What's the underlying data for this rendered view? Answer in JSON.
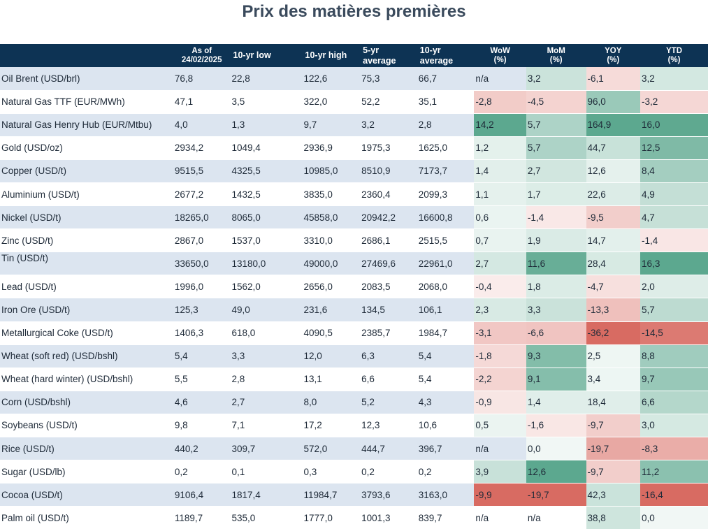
{
  "title": "Prix des matières premières",
  "headers": {
    "name": "",
    "asof": "As of",
    "asof_date": "24/02/2025",
    "low": "10-yr low",
    "high": "10-yr high",
    "avg5_a": "5-yr",
    "avg5_b": "average",
    "avg10_a": "10-yr",
    "avg10_b": "average",
    "wow_a": "WoW",
    "wow_b": "(%)",
    "mom_a": "MoM",
    "mom_b": "(%)",
    "yoy_a": "YOY",
    "yoy_b": "(%)",
    "ytd_a": "YTD",
    "ytd_b": "(%)"
  },
  "rows": [
    {
      "name": "Oil Brent (USD/brl)",
      "asof": "76,8",
      "low": "22,8",
      "high": "122,6",
      "avg5": "75,3",
      "avg10": "66,7",
      "wow": "n/a",
      "mom": "3,2",
      "yoy": "-6,1",
      "ytd": "3,2"
    },
    {
      "name": "Natural Gas TTF (EUR/MWh)",
      "asof": "47,1",
      "low": "3,5",
      "high": "322,0",
      "avg5": "52,2",
      "avg10": "35,1",
      "wow": "-2,8",
      "mom": "-4,5",
      "yoy": "96,0",
      "ytd": "-3,2"
    },
    {
      "name": "Natural Gas Henry Hub (EUR/Mtbu)",
      "asof": "4,0",
      "low": "1,3",
      "high": "9,7",
      "avg5": "3,2",
      "avg10": "2,8",
      "wow": "14,2",
      "mom": "5,7",
      "yoy": "164,9",
      "ytd": "16,0"
    },
    {
      "name": "Gold (USD/oz)",
      "asof": "2934,2",
      "low": "1049,4",
      "high": "2936,9",
      "avg5": "1975,3",
      "avg10": "1625,0",
      "wow": "1,2",
      "mom": "5,7",
      "yoy": "44,7",
      "ytd": "12,5"
    },
    {
      "name": "Copper (USD/t)",
      "asof": "9515,5",
      "low": "4325,5",
      "high": "10985,0",
      "avg5": "8510,9",
      "avg10": "7173,7",
      "wow": "1,4",
      "mom": "2,7",
      "yoy": "12,6",
      "ytd": "8,4"
    },
    {
      "name": "Aluminium (USD/t)",
      "asof": "2677,2",
      "low": "1432,5",
      "high": "3835,0",
      "avg5": "2360,4",
      "avg10": "2099,3",
      "wow": "1,1",
      "mom": "1,7",
      "yoy": "22,6",
      "ytd": "4,9"
    },
    {
      "name": "Nickel (USD/t)",
      "asof": "18265,0",
      "low": "8065,0",
      "high": "45858,0",
      "avg5": "20942,2",
      "avg10": "16600,8",
      "wow": "0,6",
      "mom": "-1,4",
      "yoy": "-9,5",
      "ytd": "4,7"
    },
    {
      "name": "Zinc (USD/t)",
      "asof": "2867,0",
      "low": "1537,0",
      "high": "3310,0",
      "avg5": "2686,1",
      "avg10": "2515,5",
      "wow": "0,7",
      "mom": "1,9",
      "yoy": "14,7",
      "ytd": "-1,4"
    },
    {
      "name": "Tin (USD/t)",
      "asof": "33650,0",
      "low": "13180,0",
      "high": "49000,0",
      "avg5": "27469,6",
      "avg10": "22961,0",
      "wow": "2,7",
      "mom": "11,6",
      "yoy": "28,4",
      "ytd": "16,3"
    },
    {
      "name": "Lead (USD/t)",
      "asof": "1996,0",
      "low": "1562,0",
      "high": "2656,0",
      "avg5": "2083,5",
      "avg10": "2068,0",
      "wow": "-0,4",
      "mom": "1,8",
      "yoy": "-4,7",
      "ytd": "2,0"
    },
    {
      "name": "Iron Ore (USD/t)",
      "asof": "125,3",
      "low": "49,0",
      "high": "231,6",
      "avg5": "134,5",
      "avg10": "106,1",
      "wow": "2,3",
      "mom": "3,3",
      "yoy": "-13,3",
      "ytd": "5,7"
    },
    {
      "name": "Metallurgical Coke (USD/t)",
      "asof": "1406,3",
      "low": "618,0",
      "high": "4090,5",
      "avg5": "2385,7",
      "avg10": "1984,7",
      "wow": "-3,1",
      "mom": "-6,6",
      "yoy": "-36,2",
      "ytd": "-14,5"
    },
    {
      "name": "Wheat (soft red) (USD/bshl)",
      "asof": "5,4",
      "low": "3,3",
      "high": "12,0",
      "avg5": "6,3",
      "avg10": "5,4",
      "wow": "-1,8",
      "mom": "9,3",
      "yoy": "2,5",
      "ytd": "8,8"
    },
    {
      "name": "Wheat (hard winter) (USD/bshl)",
      "asof": "5,5",
      "low": "2,8",
      "high": "13,1",
      "avg5": "6,6",
      "avg10": "5,4",
      "wow": "-2,2",
      "mom": "9,1",
      "yoy": "3,4",
      "ytd": "9,7"
    },
    {
      "name": "Corn (USD/bshl)",
      "asof": "4,6",
      "low": "2,7",
      "high": "8,0",
      "avg5": "5,2",
      "avg10": "4,3",
      "wow": "-0,9",
      "mom": "1,4",
      "yoy": "18,4",
      "ytd": "6,6"
    },
    {
      "name": "Soybeans (USD/t)",
      "asof": "9,8",
      "low": "7,1",
      "high": "17,2",
      "avg5": "12,3",
      "avg10": "10,6",
      "wow": "0,5",
      "mom": "-1,6",
      "yoy": "-9,7",
      "ytd": "3,0"
    },
    {
      "name": "Rice (USD/t)",
      "asof": "440,2",
      "low": "309,7",
      "high": "572,0",
      "avg5": "444,7",
      "avg10": "396,7",
      "wow": "n/a",
      "mom": "0,0",
      "yoy": "-19,7",
      "ytd": "-8,3"
    },
    {
      "name": "Sugar (USD/lb)",
      "asof": "0,2",
      "low": "0,1",
      "high": "0,3",
      "avg5": "0,2",
      "avg10": "0,2",
      "wow": "3,9",
      "mom": "12,6",
      "yoy": "-9,7",
      "ytd": "11,2"
    },
    {
      "name": "Cocoa (USD/t)",
      "asof": "9106,4",
      "low": "1817,4",
      "high": "11984,7",
      "avg5": "3793,6",
      "avg10": "3163,0",
      "wow": "-9,9",
      "mom": "-19,7",
      "yoy": "42,3",
      "ytd": "-16,4"
    },
    {
      "name": "Palm oil (USD/t)",
      "asof": "1189,7",
      "low": "535,0",
      "high": "1777,0",
      "avg5": "1001,3",
      "avg10": "839,7",
      "wow": "n/a",
      "mom": "n/a",
      "yoy": "38,8",
      "ytd": "0,0"
    }
  ],
  "colors": {
    "header_bg": "#0d3354",
    "row_shade": "#dce5f0",
    "heat_positive": "#4a9e82",
    "heat_negative": "#d45a50"
  }
}
